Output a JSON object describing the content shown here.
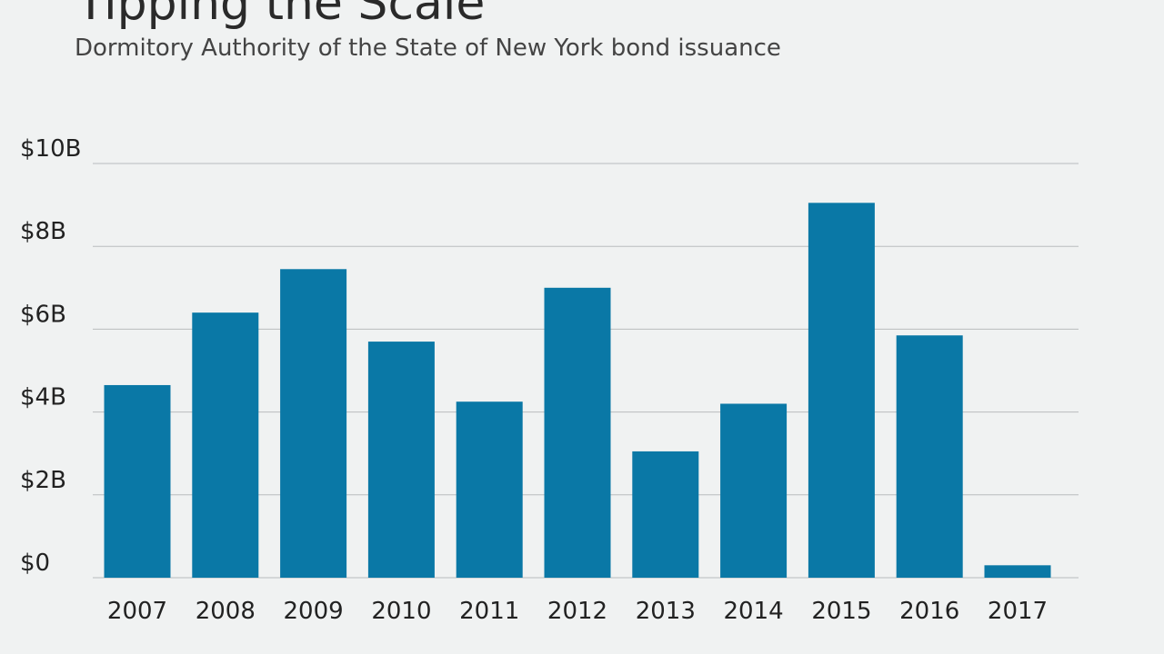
{
  "chart_data": {
    "type": "bar",
    "title": "Tipping the Scale",
    "subtitle": "Dormitory Authority of the State of New York bond issuance",
    "categories": [
      "2007",
      "2008",
      "2009",
      "2010",
      "2011",
      "2012",
      "2013",
      "2014",
      "2015",
      "2016",
      "2017"
    ],
    "values": [
      4.65,
      6.4,
      7.45,
      5.7,
      4.25,
      7.0,
      3.05,
      4.2,
      9.05,
      5.85,
      0.3
    ],
    "unit": "billion USD",
    "ylim": [
      0,
      10
    ],
    "yticks": [
      0,
      2,
      4,
      6,
      8,
      10
    ],
    "ytick_labels": [
      "$0",
      "$2B",
      "$4B",
      "$6B",
      "$8B",
      "$10B"
    ],
    "grid": true,
    "legend": "none",
    "xlabel": "",
    "ylabel": "",
    "colors": {
      "bar": "#0a78a6",
      "grid": "#b9bcbe",
      "background": "#f0f2f2"
    }
  }
}
